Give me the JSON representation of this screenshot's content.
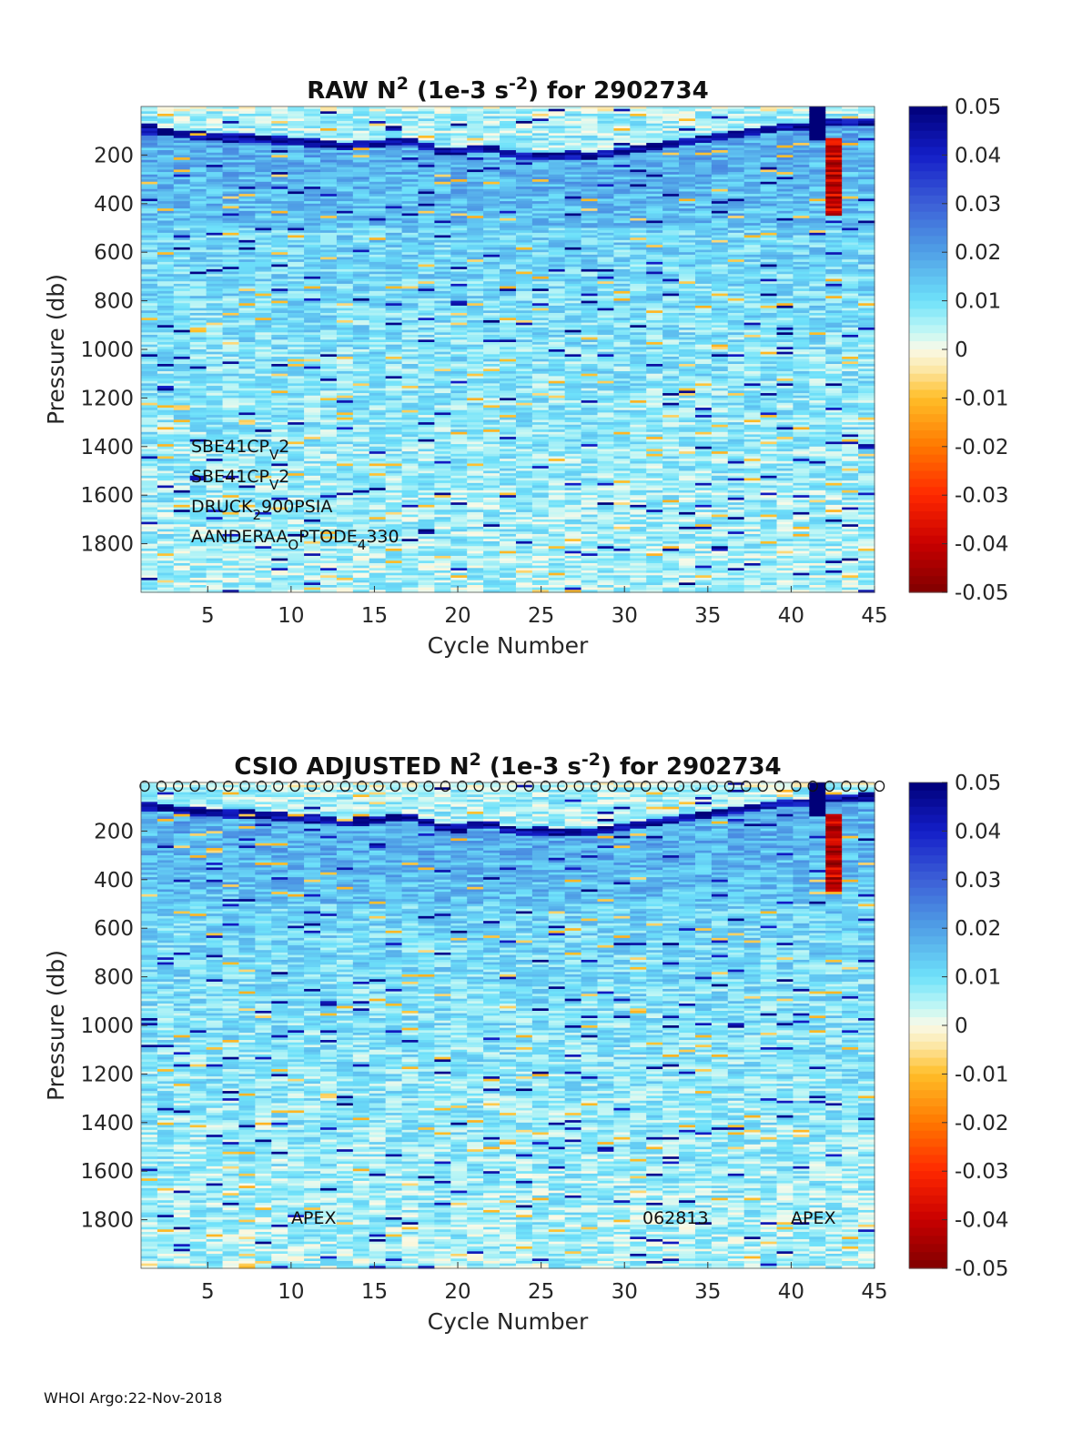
{
  "footer": "WHOI Argo:22-Nov-2018",
  "chart_data": [
    {
      "type": "heatmap",
      "title": {
        "prefix": "RAW N",
        "sup1": "2",
        "mid": " (1e-3 s",
        "sup2": "-2",
        "suffix": ") for 2902734"
      },
      "xlabel": "Cycle Number",
      "ylabel": "Pressure (db)",
      "xlim": [
        1,
        45
      ],
      "ylim": [
        0,
        2000
      ],
      "y_reversed": true,
      "xticks": [
        5,
        10,
        15,
        20,
        25,
        30,
        35,
        40,
        45
      ],
      "yticks": [
        200,
        400,
        600,
        800,
        1000,
        1200,
        1400,
        1600,
        1800
      ],
      "colorbar": {
        "min": -0.05,
        "max": 0.05,
        "ticks": [
          0.05,
          0.04,
          0.03,
          0.02,
          0.01,
          0,
          -0.01,
          -0.02,
          -0.03,
          -0.04,
          -0.05
        ],
        "colormap": "blue-cyan-white-yellow-red"
      },
      "annotations": [
        {
          "base": "SBE41CP",
          "sub": "V",
          "tail": "2"
        },
        {
          "base": "SBE41CP",
          "sub": "V",
          "tail": "2"
        },
        {
          "base": "DRUCK",
          "sub": "2",
          "tail": "900PSIA"
        },
        {
          "base": "AANDERAA",
          "sub": "O",
          "tail": "PTODE",
          "sub2": "4",
          "tail2": "330"
        }
      ],
      "features": {
        "surface_stratification_depth_by_cycle": [
          95,
          100,
          110,
          115,
          120,
          125,
          125,
          130,
          135,
          140,
          145,
          150,
          160,
          155,
          150,
          140,
          140,
          160,
          180,
          180,
          170,
          170,
          190,
          200,
          200,
          200,
          200,
          200,
          190,
          180,
          170,
          160,
          150,
          140,
          130,
          120,
          110,
          100,
          90,
          80,
          80,
          70,
          60,
          60,
          60
        ]
      }
    },
    {
      "type": "heatmap",
      "title": {
        "prefix": "CSIO  ADJUSTED N",
        "sup1": "2",
        "mid": " (1e-3 s",
        "sup2": "-2",
        "suffix": ") for 2902734"
      },
      "xlabel": "Cycle Number",
      "ylabel": "Pressure (db)",
      "xlim": [
        1,
        45
      ],
      "ylim": [
        0,
        2000
      ],
      "y_reversed": true,
      "xticks": [
        5,
        10,
        15,
        20,
        25,
        30,
        35,
        40,
        45
      ],
      "yticks": [
        200,
        400,
        600,
        800,
        1000,
        1200,
        1400,
        1600,
        1800
      ],
      "colorbar": {
        "min": -0.05,
        "max": 0.05,
        "ticks": [
          0.05,
          0.04,
          0.03,
          0.02,
          0.01,
          0,
          -0.01,
          -0.02,
          -0.03,
          -0.04,
          -0.05
        ],
        "colormap": "blue-cyan-white-yellow-red"
      },
      "top_markers": {
        "symbol": "o",
        "cycles_from": 1,
        "cycles_to": 45
      },
      "annotations": [
        "APEX",
        "062813",
        "APEX"
      ],
      "features": {
        "surface_stratification_depth_by_cycle": [
          95,
          100,
          110,
          115,
          120,
          125,
          125,
          130,
          135,
          140,
          145,
          150,
          160,
          155,
          150,
          140,
          140,
          160,
          180,
          180,
          170,
          170,
          190,
          200,
          200,
          200,
          200,
          200,
          190,
          180,
          170,
          160,
          150,
          140,
          130,
          120,
          110,
          100,
          90,
          80,
          80,
          70,
          60,
          60,
          60
        ]
      }
    }
  ]
}
